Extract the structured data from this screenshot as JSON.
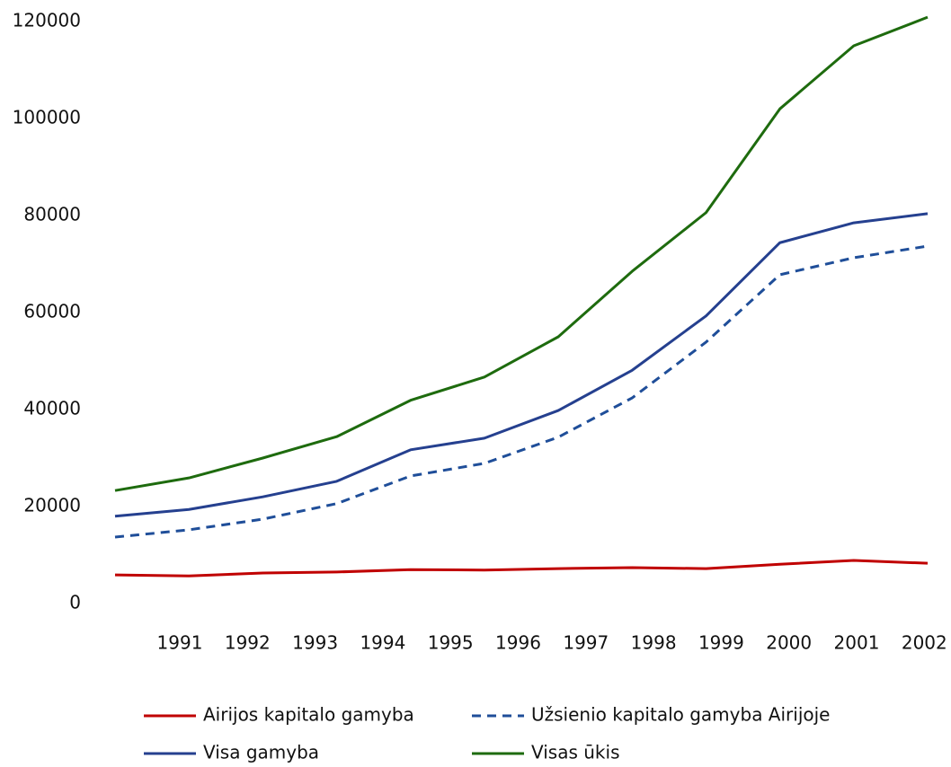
{
  "chart_data": {
    "type": "line",
    "categories": [
      "1991",
      "1992",
      "1993",
      "1994",
      "1995",
      "1996",
      "1997",
      "1998",
      "1999",
      "2000",
      "2001",
      "2002"
    ],
    "series": [
      {
        "name": "Airijos kapitalo gamyba",
        "color": "#c00000",
        "dash": false,
        "values": [
          5900,
          5700,
          6300,
          6500,
          7000,
          6900,
          7200,
          7400,
          7200,
          8100,
          8900,
          8300
        ]
      },
      {
        "name": "Užsienio kapitalo gamyba Airijoje",
        "color": "#1f4e99",
        "dash": true,
        "values": [
          13700,
          15200,
          17400,
          20600,
          26300,
          28900,
          34300,
          42400,
          53900,
          67800,
          71300,
          73700
        ]
      },
      {
        "name": "Visa gamyba",
        "color": "#25408f",
        "dash": false,
        "values": [
          18000,
          19400,
          22000,
          25200,
          31700,
          34100,
          39800,
          48100,
          59300,
          74400,
          78500,
          80400
        ]
      },
      {
        "name": "Visas ūkis",
        "color": "#1e6b0e",
        "dash": false,
        "values": [
          23300,
          25900,
          30000,
          34400,
          41900,
          46700,
          55000,
          68500,
          80600,
          102000,
          115000,
          120900
        ]
      }
    ],
    "ylim": [
      0,
      120000
    ],
    "yticks": [
      0,
      20000,
      40000,
      60000,
      80000,
      100000,
      120000
    ],
    "grid": false
  }
}
